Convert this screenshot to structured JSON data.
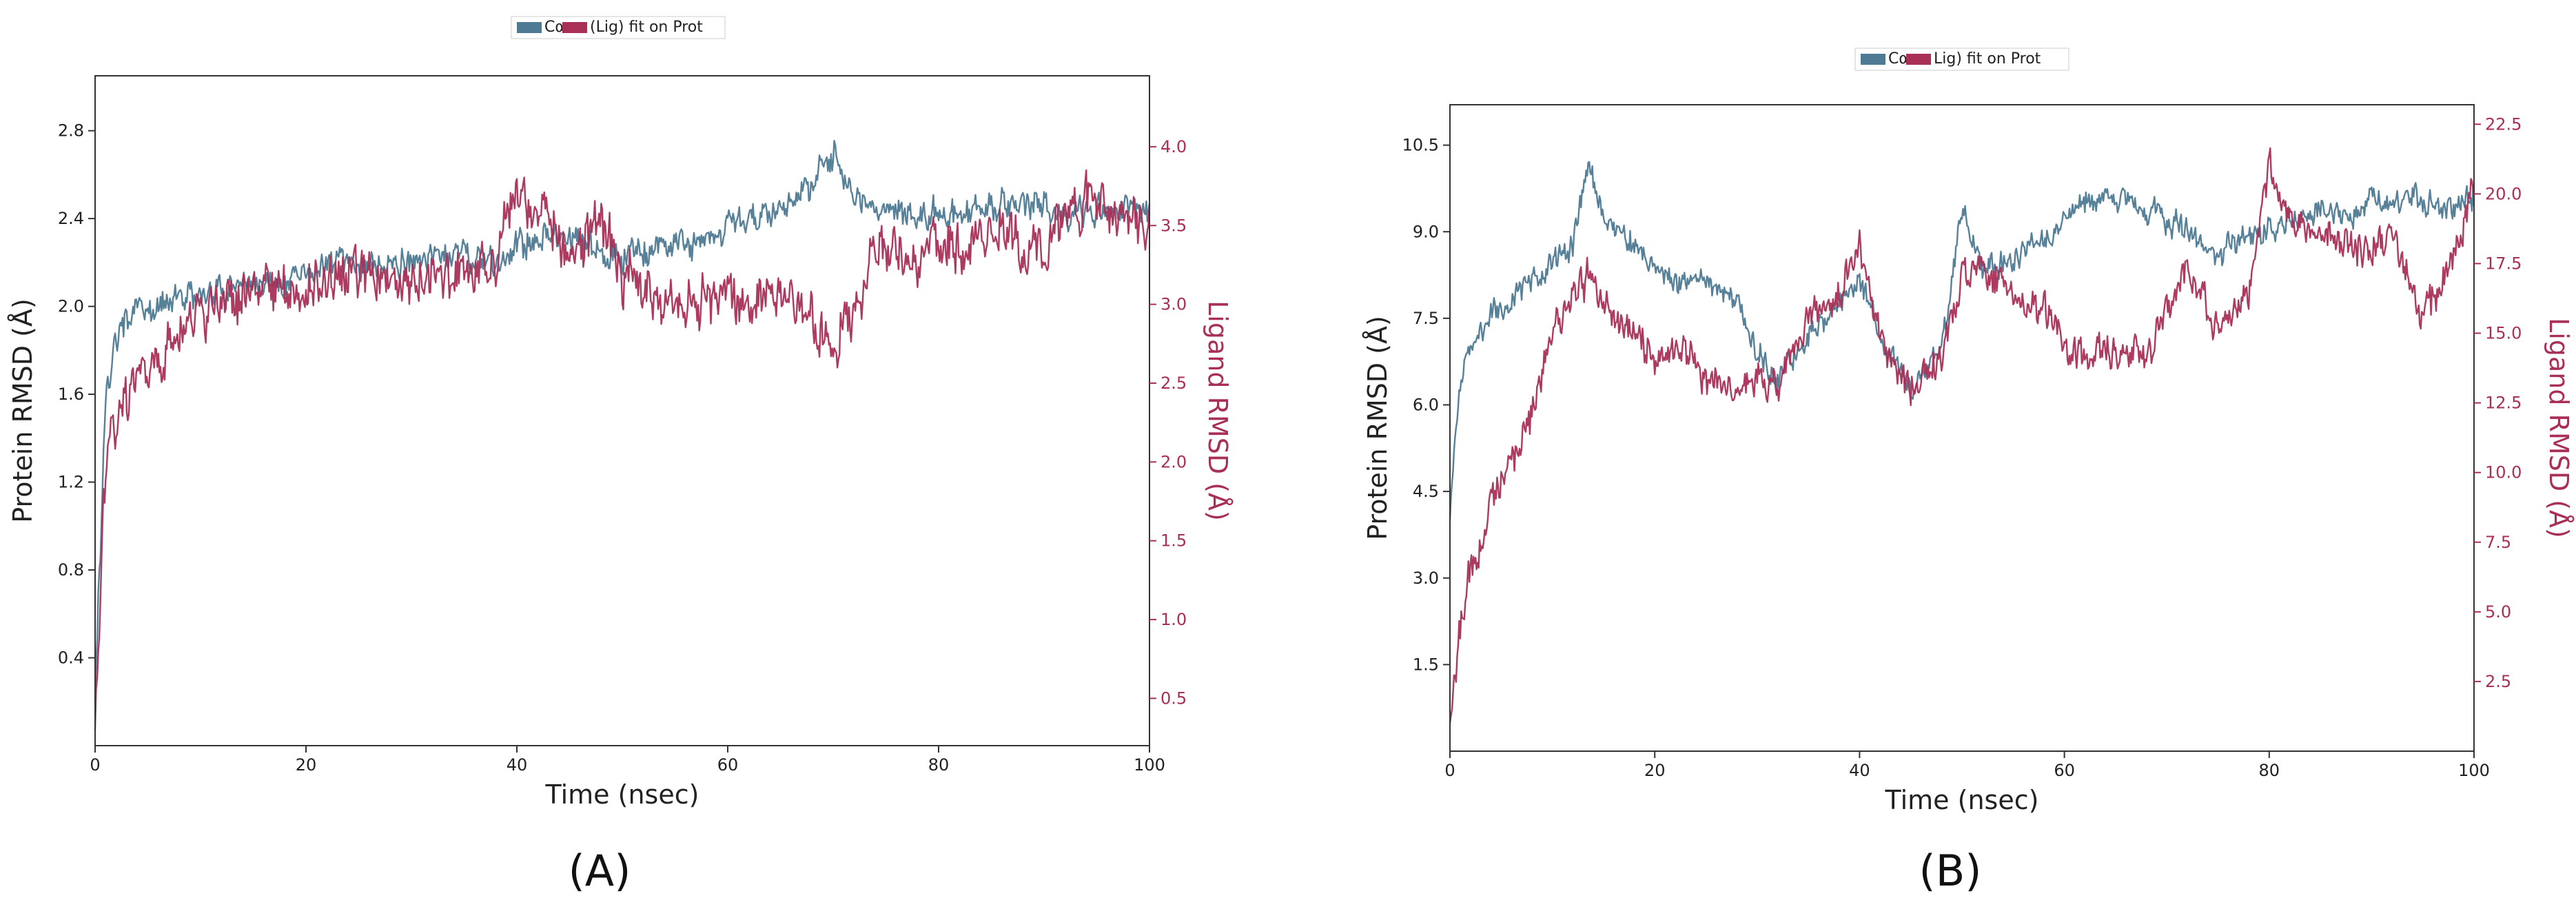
{
  "colors": {
    "protein": "#4e7a94",
    "ligand": "#a83056",
    "axis": "#333333"
  },
  "chart_data": [
    {
      "type": "line",
      "panel_label": "(A)",
      "legend": {
        "protein_label": "Cα",
        "ligand_label": "(Lig) fit on Prot",
        "placement": "top-center"
      },
      "xlabel": "Time (nsec)",
      "ylabel_left": "Protein RMSD (Å)",
      "ylabel_right": "Ligand RMSD (Å)",
      "xlim": [
        0,
        100
      ],
      "ylim_left": [
        0,
        3.05
      ],
      "ylim_right": [
        0.2,
        4.45
      ],
      "xticks": [
        0,
        20,
        40,
        60,
        80,
        100
      ],
      "yticks_left": [
        0.4,
        0.8,
        1.2,
        1.6,
        2.0,
        2.4,
        2.8
      ],
      "yticks_right": [
        0.5,
        1.0,
        1.5,
        2.0,
        2.5,
        3.0,
        3.5,
        4.0
      ],
      "yticks_left_labels": [
        "0.4",
        "0.8",
        "1.2",
        "1.6",
        "2.0",
        "2.4",
        "2.8"
      ],
      "yticks_right_labels": [
        "0.5",
        "1.0",
        "1.5",
        "2.0",
        "2.5",
        "3.0",
        "3.5",
        "4.0"
      ],
      "series": [
        {
          "name": "Cα",
          "axis": "left",
          "x": [
            0,
            1,
            2,
            3,
            5,
            8,
            10,
            12,
            15,
            18,
            20,
            22,
            25,
            28,
            30,
            32,
            35,
            38,
            40,
            42,
            45,
            48,
            50,
            52,
            55,
            58,
            60,
            62,
            65,
            68,
            70,
            72,
            75,
            78,
            80,
            82,
            85,
            88,
            90,
            92,
            95,
            98,
            100
          ],
          "y": [
            0.2,
            1.6,
            1.85,
            1.95,
            2.0,
            2.05,
            2.05,
            2.08,
            2.1,
            2.12,
            2.15,
            2.18,
            2.2,
            2.2,
            2.2,
            2.22,
            2.22,
            2.2,
            2.28,
            2.32,
            2.3,
            2.25,
            2.22,
            2.25,
            2.28,
            2.3,
            2.35,
            2.4,
            2.45,
            2.55,
            2.7,
            2.5,
            2.45,
            2.4,
            2.45,
            2.42,
            2.45,
            2.48,
            2.45,
            2.42,
            2.45,
            2.45,
            2.42
          ]
        },
        {
          "name": "(Lig) fit on Prot",
          "axis": "right",
          "x": [
            0,
            1,
            2,
            3,
            5,
            8,
            10,
            12,
            15,
            18,
            20,
            22,
            25,
            28,
            30,
            32,
            35,
            38,
            40,
            42,
            45,
            48,
            50,
            52,
            55,
            58,
            60,
            62,
            65,
            68,
            70,
            72,
            75,
            78,
            80,
            82,
            85,
            88,
            90,
            92,
            95,
            98,
            100
          ],
          "y": [
            0.3,
            2.0,
            2.2,
            2.4,
            2.6,
            2.8,
            2.95,
            3.0,
            3.05,
            3.1,
            3.1,
            3.15,
            3.2,
            3.15,
            3.15,
            3.2,
            3.2,
            3.3,
            3.75,
            3.6,
            3.3,
            3.5,
            3.2,
            3.1,
            3.0,
            3.0,
            3.05,
            3.0,
            3.05,
            2.9,
            2.7,
            3.0,
            3.4,
            3.3,
            3.4,
            3.35,
            3.45,
            3.4,
            3.3,
            3.55,
            3.7,
            3.5,
            3.45
          ]
        }
      ]
    },
    {
      "type": "line",
      "panel_label": "(B)",
      "legend": {
        "protein_label": "Cα",
        "ligand_label": "Lig) fit on Prot",
        "placement": "top-center"
      },
      "xlabel": "Time (nsec)",
      "ylabel_left": "Protein RMSD (Å)",
      "ylabel_right": "Ligand RMSD (Å)",
      "xlim": [
        0,
        100
      ],
      "ylim_left": [
        0,
        11.2
      ],
      "ylim_right": [
        0,
        23.2
      ],
      "xticks": [
        0,
        20,
        40,
        60,
        80,
        100
      ],
      "yticks_left": [
        1.5,
        3.0,
        4.5,
        6.0,
        7.5,
        9.0,
        10.5
      ],
      "yticks_right": [
        2.5,
        5.0,
        7.5,
        10.0,
        12.5,
        15.0,
        17.5,
        20.0,
        22.5
      ],
      "yticks_left_labels": [
        "1.5",
        "3.0",
        "4.5",
        "6.0",
        "7.5",
        "9.0",
        "10.5"
      ],
      "yticks_right_labels": [
        "2.5",
        "5.0",
        "7.5",
        "10.0",
        "12.5",
        "15.0",
        "17.5",
        "20.0",
        "22.5"
      ],
      "series": [
        {
          "name": "Cα",
          "axis": "left",
          "x": [
            0,
            1,
            2,
            4,
            6,
            8,
            10,
            12,
            13.5,
            15,
            18,
            20,
            22,
            25,
            28,
            30,
            32,
            35,
            38,
            40,
            42,
            45,
            48,
            50,
            52,
            55,
            58,
            60,
            62,
            65,
            68,
            70,
            72,
            75,
            78,
            80,
            82,
            85,
            88,
            90,
            92,
            95,
            98,
            100
          ],
          "y": [
            4.0,
            6.5,
            7.0,
            7.6,
            7.8,
            8.2,
            8.5,
            8.8,
            10.2,
            9.2,
            8.8,
            8.4,
            8.0,
            8.2,
            7.8,
            7.0,
            6.4,
            7.2,
            7.8,
            8.2,
            7.2,
            6.2,
            7.0,
            9.4,
            8.4,
            8.6,
            8.9,
            9.2,
            9.5,
            9.6,
            9.4,
            9.2,
            9.0,
            8.6,
            8.9,
            9.0,
            9.2,
            9.4,
            9.2,
            9.6,
            9.5,
            9.6,
            9.4,
            9.6
          ]
        },
        {
          "name": "Lig) fit on Prot",
          "axis": "right",
          "x": [
            0,
            1,
            2,
            4,
            6,
            8,
            10,
            12,
            13.5,
            15,
            18,
            20,
            22,
            25,
            28,
            30,
            32,
            35,
            38,
            40,
            42,
            45,
            48,
            50,
            52,
            55,
            58,
            60,
            62,
            65,
            68,
            70,
            72,
            75,
            78,
            80,
            82,
            85,
            88,
            90,
            92,
            95,
            98,
            100
          ],
          "y": [
            1.0,
            4.5,
            6.5,
            8.5,
            10.5,
            12.0,
            15.0,
            16.5,
            17.0,
            16.0,
            15.0,
            14.0,
            14.5,
            13.5,
            13.0,
            13.5,
            13.0,
            15.5,
            16.5,
            18.0,
            15.0,
            13.0,
            14.0,
            17.0,
            17.5,
            16.5,
            16.0,
            14.5,
            14.0,
            14.5,
            14.0,
            16.0,
            17.5,
            15.0,
            16.5,
            21.0,
            19.0,
            18.5,
            18.0,
            18.0,
            18.5,
            15.5,
            17.5,
            20.5
          ]
        }
      ]
    }
  ]
}
